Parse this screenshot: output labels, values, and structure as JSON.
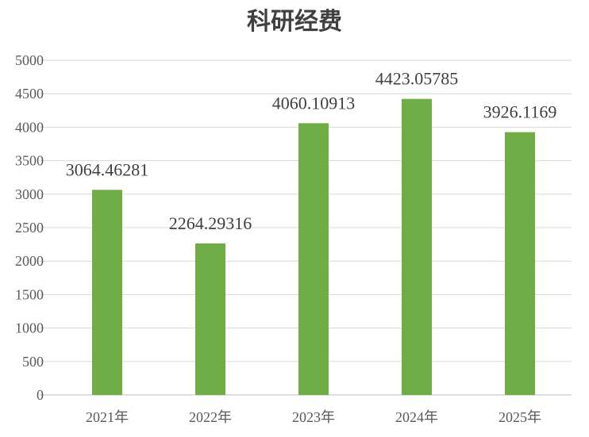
{
  "chart_data": {
    "type": "bar",
    "title": "科研经费",
    "categories": [
      "2021年",
      "2022年",
      "2023年",
      "2024年",
      "2025年"
    ],
    "values": [
      3064.46281,
      2264.29316,
      4060.10913,
      4423.05785,
      3926.1169
    ],
    "data_labels": [
      "3064.46281",
      "2264.29316",
      "4060.10913",
      "4423.05785",
      "3926.1169"
    ],
    "ylim": [
      0,
      5000
    ],
    "yticks": [
      0,
      500,
      1000,
      1500,
      2000,
      2500,
      3000,
      3500,
      4000,
      4500,
      5000
    ],
    "xlabel": "",
    "ylabel": "",
    "grid": true,
    "legend": "none",
    "bar_color": "#70AD47"
  }
}
